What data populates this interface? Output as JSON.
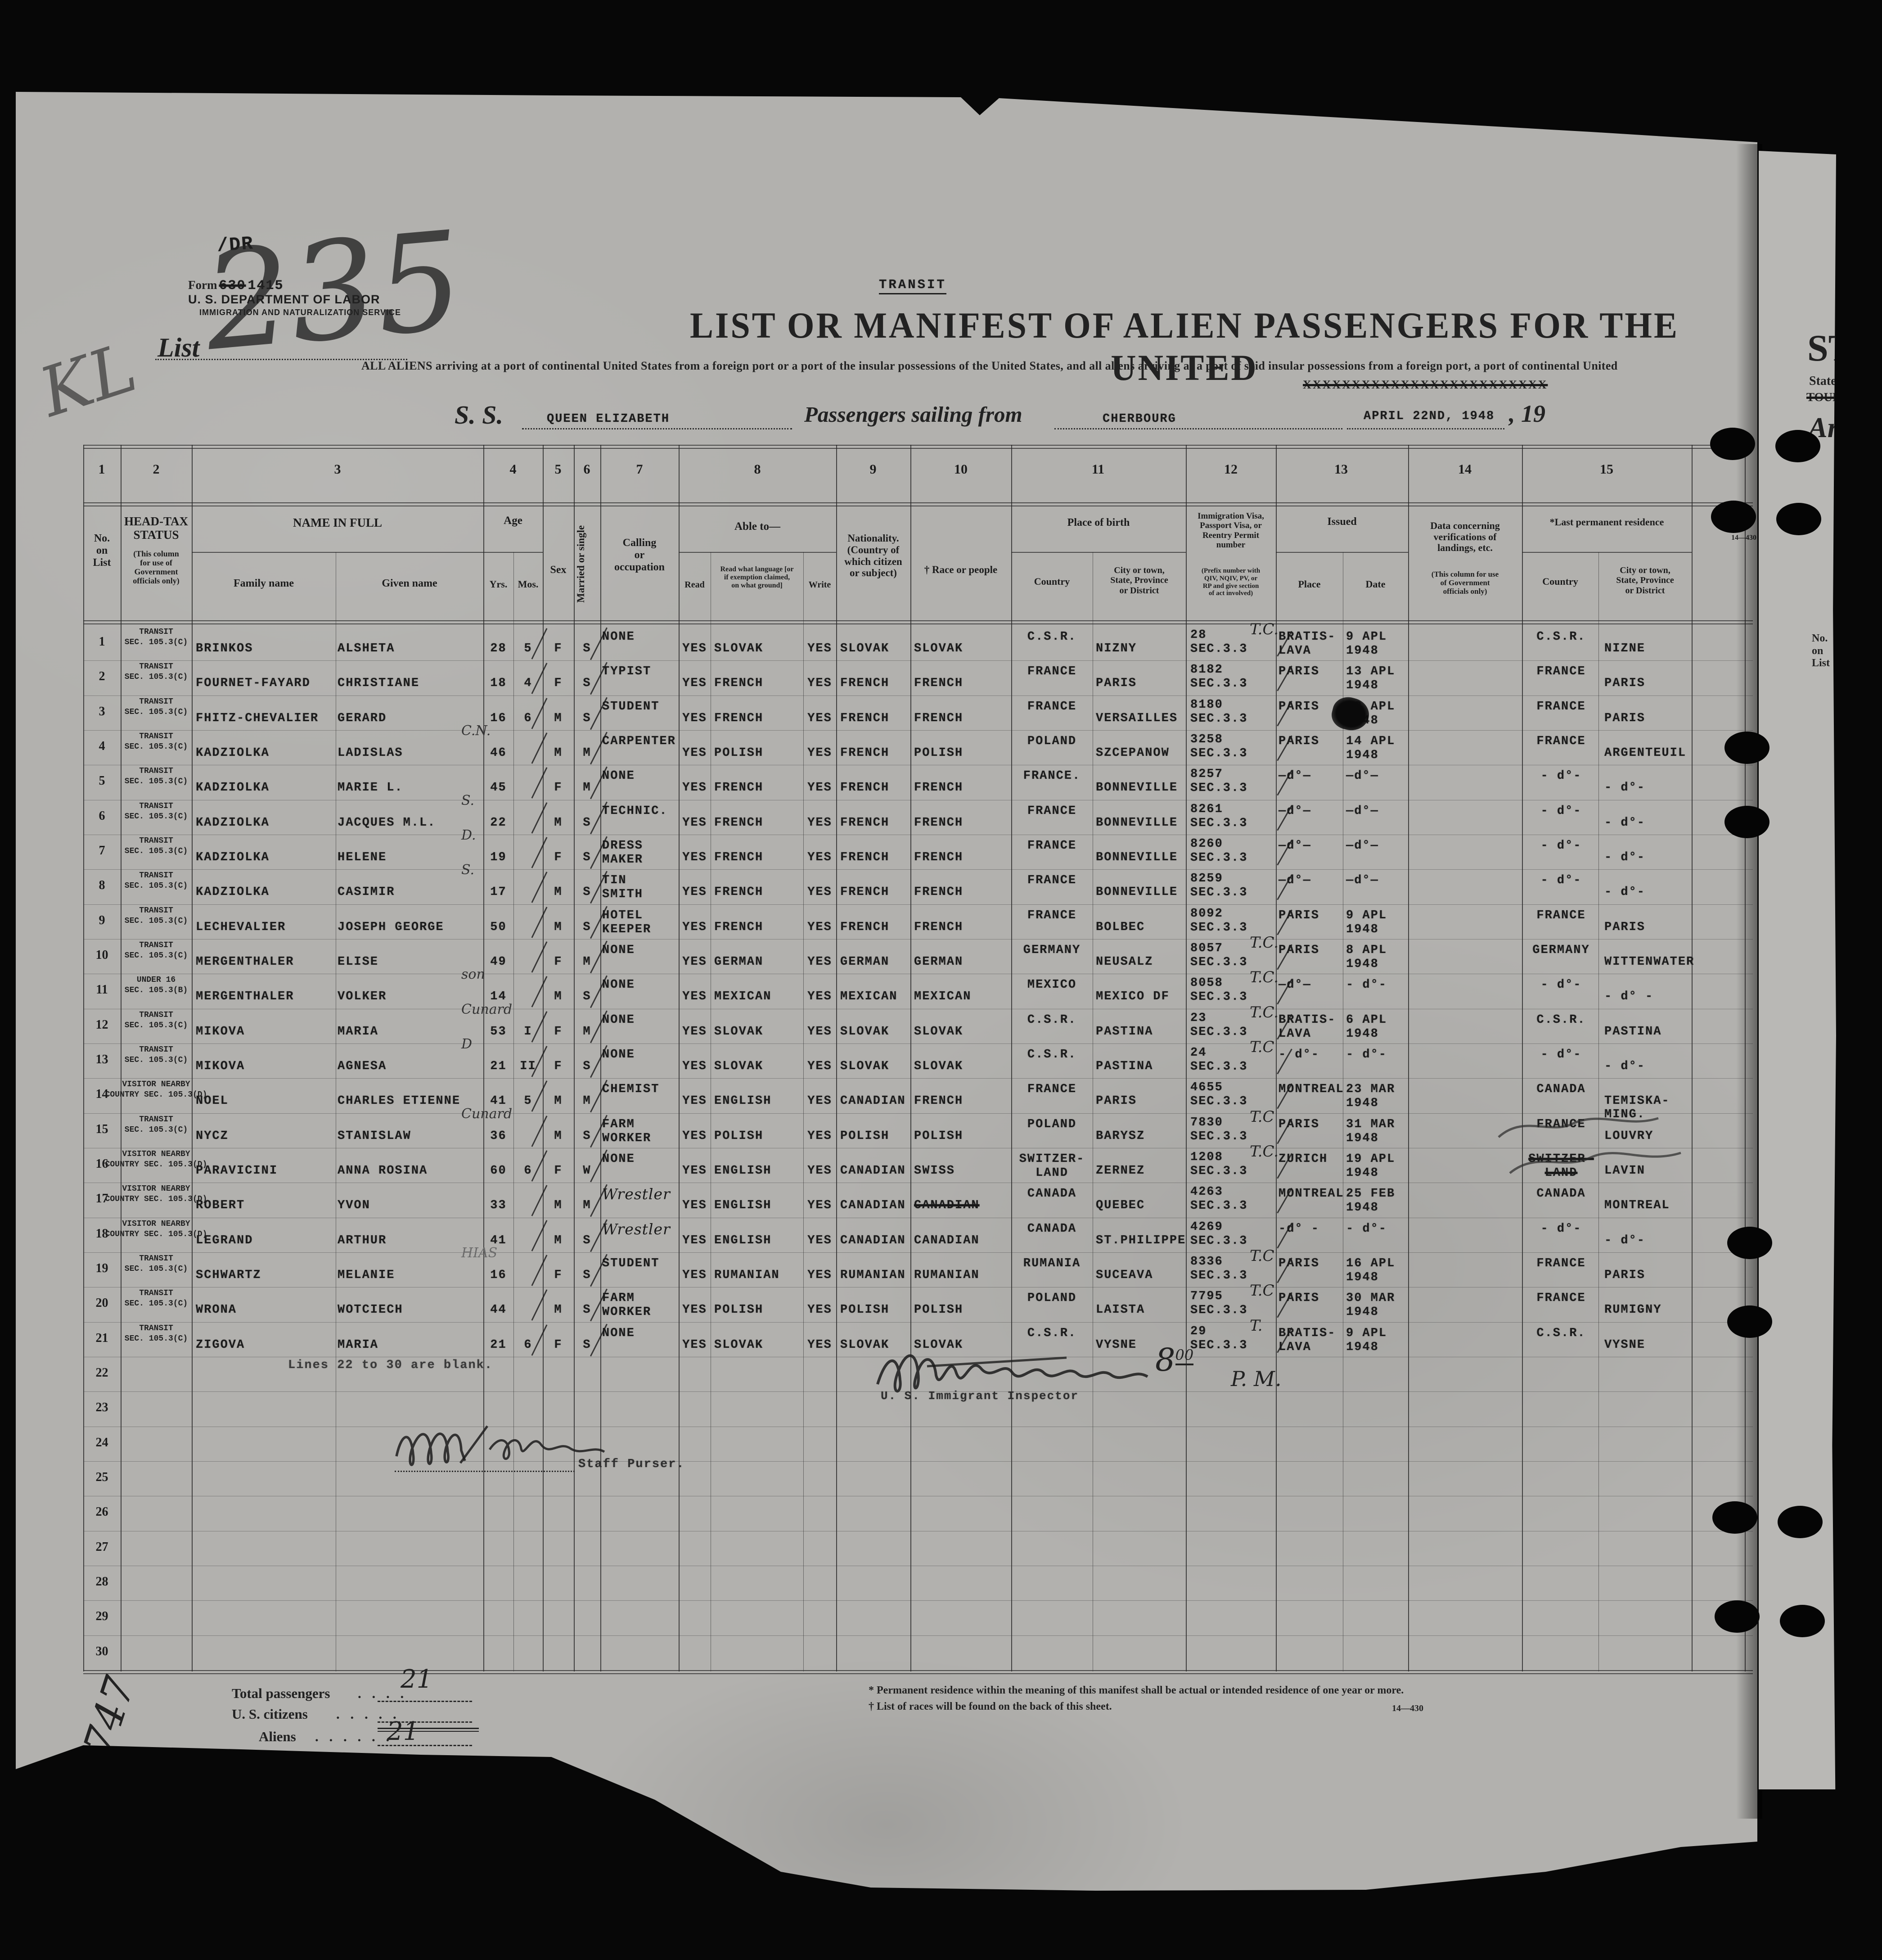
{
  "top": {
    "dr": "/DR",
    "kl": "KL",
    "form_label": "Form",
    "form_struck": "630",
    "form_no": "1415",
    "dept": "U. S. DEPARTMENT OF LABOR",
    "service": "IMMIGRATION AND NATURALIZATION SERVICE",
    "list_label": "List",
    "list_no": "235",
    "transit_stamp": "TRANSIT",
    "title": "LIST OR MANIFEST OF ALIEN PASSENGERS FOR THE UNITED",
    "subtitle": "ALL ALIENS arriving at a port of continental United States from a foreign port or a port of the insular possessions of the United States, and all aliens arriving at a port of said insular possessions from a foreign port, a port of continental United",
    "subtitle_struck": "XXXXXXXXXXXXXXXXXXXXXXXXX",
    "ss": "S. S.",
    "vessel": "QUEEN ELIZABETH",
    "sailing": "Passengers sailing from",
    "port": "CHERBOURG",
    "date": "APRIL 22ND, 1948",
    "year": ", 19"
  },
  "strip": {
    "st": "ST",
    "states": "States",
    "struck": "TOURI",
    "arr": "Arr",
    "no_on_list": "No.\non\nList"
  },
  "table": {
    "hdr": {
      "n1": "1",
      "n2": "2",
      "n3": "3",
      "n4": "4",
      "n5": "5",
      "n6": "6",
      "n7": "7",
      "n8": "8",
      "n9": "9",
      "n10": "10",
      "n11": "11",
      "n12": "12",
      "n13": "13",
      "n14": "14",
      "n15": "15",
      "c1": "No.\non\nList",
      "c2a": "HEAD-TAX\nSTATUS",
      "c2b": "(This column\nfor use of\nGovernment\nofficials only)",
      "c3": "NAME IN FULL",
      "c3a": "Family name",
      "c3b": "Given name",
      "c4": "Age",
      "c4a": "Yrs.",
      "c4b": "Mos.",
      "c5": "Sex",
      "c6": "Married or single",
      "c7": "Calling\nor\noccupation",
      "c8": "Able to—",
      "c8a": "Read",
      "c8b": "Read what language [or\nif exemption claimed,\non what ground]",
      "c8c": "Write",
      "c9": "Nationality.\n(Country of\nwhich citizen\nor subject)",
      "c10": "† Race or people",
      "c11": "Place of birth",
      "c11a": "Country",
      "c11b": "City or town,\nState, Province\nor District",
      "c12": "Immigration Visa,\nPassport Visa, or\nReentry  Permit\nnumber",
      "c12b": "(Prefix number with\nQIV, NQIV, PV, or\nRP and give section\nof act involved)",
      "c13": "Issued",
      "c13a": "Place",
      "c13b": "Date",
      "c14": "Data  concerning\nverifications of\nlandings, etc.",
      "c14b": "(This column for use\nof Government\nofficials only)",
      "c15": "*Last permanent residence",
      "c15a": "Country",
      "c15b": "City or town,\nState, Province\nor District"
    },
    "rows": [
      {
        "no": "1",
        "st1": "TRANSIT",
        "st2": "SEC. 105.3(C)",
        "fam": "BRINKOS",
        "giv": "ALSHETA",
        "note": "",
        "yrs": "28",
        "mos": "5",
        "sex": "F",
        "mar": "S",
        "call": "NONE",
        "read": "YES",
        "lang": "SLOVAK",
        "write": "YES",
        "nat": "SLOVAK",
        "race": "SLOVAK",
        "bc": "C.S.R.",
        "bcity": "NIZNY",
        "v1": "28",
        "v2": "SEC.3.3",
        "tc": "T.C.",
        "ip": "BRATIS-\nLAVA",
        "idt": "9 APL\n1948",
        "lc": "C.S.R.",
        "lcity": "NIZNE"
      },
      {
        "no": "2",
        "st1": "TRANSIT",
        "st2": "SEC. 105.3(C)",
        "fam": "FOURNET-FAYARD",
        "giv": "CHRISTIANE",
        "note": "",
        "yrs": "18",
        "mos": "4",
        "sex": "F",
        "mar": "S",
        "call": "TYPIST",
        "read": "YES",
        "lang": "FRENCH",
        "write": "YES",
        "nat": "FRENCH",
        "race": "FRENCH",
        "bc": "FRANCE",
        "bcity": "PARIS",
        "v1": "8182",
        "v2": "SEC.3.3",
        "tc": "",
        "ip": "PARIS",
        "idt": "13 APL\n1948",
        "lc": "FRANCE",
        "lcity": "PARIS"
      },
      {
        "no": "3",
        "st1": "TRANSIT",
        "st2": "SEC. 105.3(C)",
        "fam": "FHITZ-CHEVALIER",
        "giv": "GERARD",
        "note": "",
        "yrs": "16",
        "mos": "6",
        "sex": "M",
        "mar": "S",
        "call": "STUDENT",
        "read": "YES",
        "lang": "FRENCH",
        "write": "YES",
        "nat": "FRENCH",
        "race": "FRENCH",
        "bc": "FRANCE",
        "bcity": "VERSAILLES",
        "v1": "8180",
        "v2": "SEC.3.3",
        "tc": "",
        "ip": "PARIS",
        "idt": "13 APL\n1948",
        "lc": "FRANCE",
        "lcity": "PARIS"
      },
      {
        "no": "4",
        "st1": "TRANSIT",
        "st2": "SEC. 105.3(C)",
        "fam": "KADZIOLKA",
        "giv": "LADISLAS",
        "note": "C.N.",
        "yrs": "46",
        "mos": "",
        "sex": "M",
        "mar": "M",
        "call": "CARPENTER",
        "read": "YES",
        "lang": "POLISH",
        "write": "YES",
        "nat": "FRENCH",
        "race": "POLISH",
        "bc": "POLAND",
        "bcity": "SZCEPANOW",
        "v1": "3258",
        "v2": "SEC.3.3",
        "tc": "",
        "ip": "PARIS",
        "idt": "14 APL\n1948",
        "lc": "FRANCE",
        "lcity": "ARGENTEUIL"
      },
      {
        "no": "5",
        "st1": "TRANSIT",
        "st2": "SEC. 105.3(C)",
        "fam": "KADZIOLKA",
        "giv": "MARIE L.",
        "note": "",
        "yrs": "45",
        "mos": "",
        "sex": "F",
        "mar": "M",
        "call": "NONE",
        "read": "YES",
        "lang": "FRENCH",
        "write": "YES",
        "nat": "FRENCH",
        "race": "FRENCH",
        "bc": "FRANCE.",
        "bcity": "BONNEVILLE",
        "v1": "8257",
        "v2": "SEC.3.3",
        "tc": "",
        "ip": "—d°—",
        "idt": "—d°—",
        "lc": "- d°-",
        "lcity": "- d°-"
      },
      {
        "no": "6",
        "st1": "TRANSIT",
        "st2": "SEC. 105.3(C)",
        "fam": "KADZIOLKA",
        "giv": "JACQUES M.L.",
        "note": "S.",
        "yrs": "22",
        "mos": "",
        "sex": "M",
        "mar": "S",
        "call": "TECHNIC.",
        "read": "YES",
        "lang": "FRENCH",
        "write": "YES",
        "nat": "FRENCH",
        "race": "FRENCH",
        "bc": "FRANCE",
        "bcity": "BONNEVILLE",
        "v1": "8261",
        "v2": "SEC.3.3",
        "tc": "",
        "ip": "—d°—",
        "idt": "—d°—",
        "lc": "- d°-",
        "lcity": "- d°-"
      },
      {
        "no": "7",
        "st1": "TRANSIT",
        "st2": "SEC. 105.3(C)",
        "fam": "KADZIOLKA",
        "giv": "HELENE",
        "note": "D.",
        "yrs": "19",
        "mos": "",
        "sex": "F",
        "mar": "S",
        "call": "DRESS\nMAKER",
        "read": "YES",
        "lang": "FRENCH",
        "write": "YES",
        "nat": "FRENCH",
        "race": "FRENCH",
        "bc": "FRANCE",
        "bcity": "BONNEVILLE",
        "v1": "8260",
        "v2": "SEC.3.3",
        "tc": "",
        "ip": "—d°—",
        "idt": "—d°—",
        "lc": "- d°-",
        "lcity": "- d°-"
      },
      {
        "no": "8",
        "st1": "TRANSIT",
        "st2": "SEC. 105.3(C)",
        "fam": "KADZIOLKA",
        "giv": "CASIMIR",
        "note": "S.",
        "yrs": "17",
        "mos": "",
        "sex": "M",
        "mar": "S",
        "call": "TIN\nSMITH",
        "read": "YES",
        "lang": "FRENCH",
        "write": "YES",
        "nat": "FRENCH",
        "race": "FRENCH",
        "bc": "FRANCE",
        "bcity": "BONNEVILLE",
        "v1": "8259",
        "v2": "SEC.3.3",
        "tc": "",
        "ip": "—d°—",
        "idt": "—d°—",
        "lc": "- d°-",
        "lcity": "- d°-"
      },
      {
        "no": "9",
        "st1": "TRANSIT",
        "st2": "SEC. 105.3(C)",
        "fam": "LECHEVALIER",
        "giv": "JOSEPH GEORGE",
        "note": "",
        "yrs": "50",
        "mos": "",
        "sex": "M",
        "mar": "S",
        "call": "HOTEL\nKEEPER",
        "read": "YES",
        "lang": "FRENCH",
        "write": "YES",
        "nat": "FRENCH",
        "race": "FRENCH",
        "bc": "FRANCE",
        "bcity": "BOLBEC",
        "v1": "8092",
        "v2": "SEC.3.3",
        "tc": "",
        "ip": "PARIS",
        "idt": "9 APL\n1948",
        "lc": "FRANCE",
        "lcity": "PARIS"
      },
      {
        "no": "10",
        "st1": "TRANSIT",
        "st2": "SEC. 105.3(C)",
        "fam": "MERGENTHALER",
        "giv": "ELISE",
        "note": "",
        "yrs": "49",
        "mos": "",
        "sex": "F",
        "mar": "M",
        "call": "NONE",
        "read": "YES",
        "lang": "GERMAN",
        "write": "YES",
        "nat": "GERMAN",
        "race": "GERMAN",
        "bc": "GERMANY",
        "bcity": "NEUSALZ",
        "v1": "8057",
        "v2": "SEC.3.3",
        "tc": "T.C.",
        "ip": "PARIS",
        "idt": "8 APL\n1948",
        "lc": "GERMANY",
        "lcity": "WITTENWATER"
      },
      {
        "no": "11",
        "st1": "UNDER 16",
        "st2": "SEC. 105.3(B)",
        "fam": "MERGENTHALER",
        "giv": "VOLKER",
        "note": "son",
        "yrs": "14",
        "mos": "",
        "sex": "M",
        "mar": "S",
        "call": "NONE",
        "read": "YES",
        "lang": "MEXICAN",
        "write": "YES",
        "nat": "MEXICAN",
        "race": "MEXICAN",
        "bc": "MEXICO",
        "bcity": "MEXICO DF",
        "v1": "8058",
        "v2": "SEC.3.3",
        "tc": "T.C.",
        "ip": "—d°—",
        "idt": "- d°-",
        "lc": "- d°-",
        "lcity": "- d° -"
      },
      {
        "no": "12",
        "st1": "TRANSIT",
        "st2": "SEC. 105.3(C)",
        "fam": "MIKOVA",
        "giv": "MARIA",
        "note": "Cunard",
        "yrs": "53",
        "mos": "I",
        "sex": "F",
        "mar": "M",
        "call": "NONE",
        "read": "YES",
        "lang": "SLOVAK",
        "write": "YES",
        "nat": "SLOVAK",
        "race": "SLOVAK",
        "bc": "C.S.R.",
        "bcity": "PASTINA",
        "v1": "23",
        "v2": "SEC.3.3",
        "tc": "T.C.",
        "ip": "BRATIS-\nLAVA",
        "idt": "6 APL\n1948",
        "lc": "C.S.R.",
        "lcity": "PASTINA"
      },
      {
        "no": "13",
        "st1": "TRANSIT",
        "st2": "SEC. 105.3(C)",
        "fam": "MIKOVA",
        "giv": "AGNESA",
        "note": "D",
        "yrs": "21",
        "mos": "II",
        "sex": "F",
        "mar": "S",
        "call": "NONE",
        "read": "YES",
        "lang": "SLOVAK",
        "write": "YES",
        "nat": "SLOVAK",
        "race": "SLOVAK",
        "bc": "C.S.R.",
        "bcity": "PASTINA",
        "v1": "24",
        "v2": "SEC.3.3",
        "tc": "T.C",
        "ip": "- d°-",
        "idt": "- d°-",
        "lc": "- d°-",
        "lcity": "- d°-"
      },
      {
        "no": "14",
        "st1": "VISITOR NEARBY",
        "st2": "COUNTRY SEC. 105.3(D)",
        "fam": "NOEL",
        "giv": "CHARLES ETIENNE",
        "note": "",
        "yrs": "41",
        "mos": "5",
        "sex": "M",
        "mar": "M",
        "call": "CHEMIST",
        "read": "YES",
        "lang": "ENGLISH",
        "write": "YES",
        "nat": "CANADIAN",
        "race": "FRENCH",
        "bc": "FRANCE",
        "bcity": "PARIS",
        "v1": "4655",
        "v2": "SEC.3.3",
        "tc": "",
        "ip": "MONTREAL",
        "idt": "23 MAR\n1948",
        "lc": "CANADA",
        "lcity": "TEMISKA-\nMING."
      },
      {
        "no": "15",
        "st1": "TRANSIT",
        "st2": "SEC. 105.3(C)",
        "fam": "NYCZ",
        "giv": "STANISLAW",
        "note": "Cunard",
        "yrs": "36",
        "mos": "",
        "sex": "M",
        "mar": "S",
        "call": "FARM\nWORKER",
        "read": "YES",
        "lang": "POLISH",
        "write": "YES",
        "nat": "POLISH",
        "race": "POLISH",
        "bc": "POLAND",
        "bcity": "BARYSZ",
        "v1": "7830",
        "v2": "SEC.3.3",
        "tc": "T.C",
        "ip": "PARIS",
        "idt": "31 MAR\n1948",
        "lc": "FRANCE",
        "lcity": "LOUVRY"
      },
      {
        "no": "16",
        "st1": "VISITOR NEARBY",
        "st2": "COUNTRY SEC. 105.3(D)",
        "fam": "PARAVICINI",
        "giv": "ANNA ROSINA",
        "note": "",
        "yrs": "60",
        "mos": "6",
        "sex": "F",
        "mar": "W",
        "call": "NONE",
        "read": "YES",
        "lang": "ENGLISH",
        "write": "YES",
        "nat": "CANADIAN",
        "race": "SWISS",
        "bc": "SWITZER-\nLAND",
        "bcity": "ZERNEZ",
        "v1": "1208",
        "v2": "SEC.3.3",
        "tc": "T.C.",
        "ip": "ZURICH",
        "idt": "19 APL\n1948",
        "lc": "SWITZER-\nLAND",
        "lcity": "LAVIN"
      },
      {
        "no": "17",
        "st1": "VISITOR NEARBY",
        "st2": "COUNTRY SEC. 105.3(D)",
        "fam": "ROBERT",
        "giv": "YVON",
        "note": "",
        "yrs": "33",
        "mos": "",
        "sex": "M",
        "mar": "M",
        "call": "Wrestler",
        "read": "YES",
        "lang": "ENGLISH",
        "write": "YES",
        "nat": "CANADIAN",
        "race": "CANADIAN",
        "bc": "CANADA",
        "bcity": "QUEBEC",
        "v1": "4263",
        "v2": "SEC.3.3",
        "tc": "",
        "ip": "MONTREAL",
        "idt": "25 FEB\n1948",
        "lc": "CANADA",
        "lcity": "MONTREAL"
      },
      {
        "no": "18",
        "st1": "VISITOR NEARBY",
        "st2": "COUNTRY SEC. 105.3(D)",
        "fam": "LEGRAND",
        "giv": "ARTHUR",
        "note": "",
        "yrs": "41",
        "mos": "",
        "sex": "M",
        "mar": "S",
        "call": "Wrestler",
        "read": "YES",
        "lang": "ENGLISH",
        "write": "YES",
        "nat": "CANADIAN",
        "race": "CANADIAN",
        "bc": "CANADA",
        "bcity": "ST.PHILIPPE",
        "v1": "4269",
        "v2": "SEC.3.3",
        "tc": "",
        "ip": "-d° -",
        "idt": "- d°-",
        "lc": "- d°-",
        "lcity": "- d°-"
      },
      {
        "no": "19",
        "st1": "TRANSIT",
        "st2": "SEC. 105.3(C)",
        "fam": "SCHWARTZ",
        "giv": "MELANIE",
        "note": "HIAS",
        "yrs": "16",
        "mos": "",
        "sex": "F",
        "mar": "S",
        "call": "STUDENT",
        "read": "YES",
        "lang": "RUMANIAN",
        "write": "YES",
        "nat": "RUMANIAN",
        "race": "RUMANIAN",
        "bc": "RUMANIA",
        "bcity": "SUCEAVA",
        "v1": "8336",
        "v2": "SEC.3.3",
        "tc": "T.C",
        "ip": "PARIS",
        "idt": "16 APL\n1948",
        "lc": "FRANCE",
        "lcity": "PARIS"
      },
      {
        "no": "20",
        "st1": "TRANSIT",
        "st2": "SEC. 105.3(C)",
        "fam": "WRONA",
        "giv": "WOTCIECH",
        "note": "",
        "yrs": "44",
        "mos": "",
        "sex": "M",
        "mar": "S",
        "call": "FARM\nWORKER",
        "read": "YES",
        "lang": "POLISH",
        "write": "YES",
        "nat": "POLISH",
        "race": "POLISH",
        "bc": "POLAND",
        "bcity": "LAISTA",
        "v1": "7795",
        "v2": "SEC.3.3",
        "tc": "T.C",
        "ip": "PARIS",
        "idt": "30 MAR\n1948",
        "lc": "FRANCE",
        "lcity": "RUMIGNY"
      },
      {
        "no": "21",
        "st1": "TRANSIT",
        "st2": "SEC. 105.3(C)",
        "fam": "ZIGOVA",
        "giv": "MARIA",
        "note": "",
        "yrs": "21",
        "mos": "6",
        "sex": "F",
        "mar": "S",
        "call": "NONE",
        "read": "YES",
        "lang": "SLOVAK",
        "write": "YES",
        "nat": "SLOVAK",
        "race": "SLOVAK",
        "bc": "C.S.R.",
        "bcity": "VYSNE",
        "v1": "29",
        "v2": "SEC.3.3",
        "tc": "T.",
        "ip": "BRATIS-\nLAVA",
        "idt": "9 APL\n1948",
        "lc": "C.S.R.",
        "lcity": "VYSNE"
      },
      {
        "no": "22"
      },
      {
        "no": "23"
      },
      {
        "no": "24"
      },
      {
        "no": "25"
      },
      {
        "no": "26"
      },
      {
        "no": "27"
      },
      {
        "no": "28"
      },
      {
        "no": "29"
      },
      {
        "no": "30"
      }
    ],
    "specials": [
      {
        "row": 16,
        "f": "lc",
        "c": "struck"
      },
      {
        "row": 17,
        "f": "race",
        "c": "struck"
      },
      {
        "row": 17,
        "f": "call",
        "c": "hand"
      },
      {
        "row": 18,
        "f": "call",
        "c": "hand"
      },
      {
        "row": 19,
        "f": "note",
        "c": "pencil"
      }
    ],
    "blank_note": "Lines 22 to 30 are blank."
  },
  "footer": {
    "inspector_title": "U. S. Immigrant Inspector",
    "time_hour": "8",
    "time_sup": "00",
    "time_pm": "P. M.",
    "purser_title": "Staff Purser.",
    "total_label": "Total passengers",
    "total_dots": ".    .    .    .",
    "total_value": "21",
    "citizens_label": "U. S. citizens",
    "citizens_dots": ".    .    .    .    .",
    "citizens_value": "",
    "aliens_label": "Aliens",
    "aliens_dots": ".    .    .    .    .    .",
    "aliens_value": "21",
    "side_number": "747",
    "fn1": "* Permanent residence within the meaning of this manifest shall be actual or intended residence of one year or more.",
    "fn2": "† List of races will be found on the back of this sheet.",
    "code": "14—430"
  }
}
